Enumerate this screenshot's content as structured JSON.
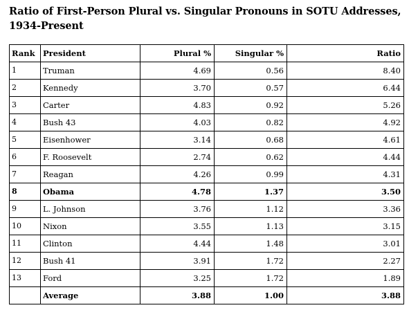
{
  "title": "Ratio of First-Person Plural vs. Singular Pronouns in SOTU Addresses, 1934-Present",
  "table": {
    "headers": {
      "rank": "Rank",
      "president": "President",
      "plural": "Plural %",
      "singular": "Singular %",
      "ratio": "Ratio"
    },
    "rows": [
      {
        "rank": "1",
        "president": "Truman",
        "plural": "4.69",
        "singular": "0.56",
        "ratio": "8.40"
      },
      {
        "rank": "2",
        "president": "Kennedy",
        "plural": "3.70",
        "singular": "0.57",
        "ratio": "6.44"
      },
      {
        "rank": "3",
        "president": "Carter",
        "plural": "4.83",
        "singular": "0.92",
        "ratio": "5.26"
      },
      {
        "rank": "4",
        "president": "Bush 43",
        "plural": "4.03",
        "singular": "0.82",
        "ratio": "4.92"
      },
      {
        "rank": "5",
        "president": "Eisenhower",
        "plural": "3.14",
        "singular": "0.68",
        "ratio": "4.61"
      },
      {
        "rank": "6",
        "president": "F. Roosevelt",
        "plural": "2.74",
        "singular": "0.62",
        "ratio": "4.44"
      },
      {
        "rank": "7",
        "president": "Reagan",
        "plural": "4.26",
        "singular": "0.99",
        "ratio": "4.31"
      },
      {
        "rank": "8",
        "president": "Obama",
        "plural": "4.78",
        "singular": "1.37",
        "ratio": "3.50",
        "bold": true
      },
      {
        "rank": "9",
        "president": "L. Johnson",
        "plural": "3.76",
        "singular": "1.12",
        "ratio": "3.36"
      },
      {
        "rank": "10",
        "president": "Nixon",
        "plural": "3.55",
        "singular": "1.13",
        "ratio": "3.15"
      },
      {
        "rank": "11",
        "president": "Clinton",
        "plural": "4.44",
        "singular": "1.48",
        "ratio": "3.01"
      },
      {
        "rank": "12",
        "president": "Bush 41",
        "plural": "3.91",
        "singular": "1.72",
        "ratio": "2.27"
      },
      {
        "rank": "13",
        "president": "Ford",
        "plural": "3.25",
        "singular": "1.72",
        "ratio": "1.89"
      },
      {
        "rank": "",
        "president": "Average",
        "plural": "3.88",
        "singular": "1.00",
        "ratio": "3.88",
        "bold": true
      }
    ]
  }
}
